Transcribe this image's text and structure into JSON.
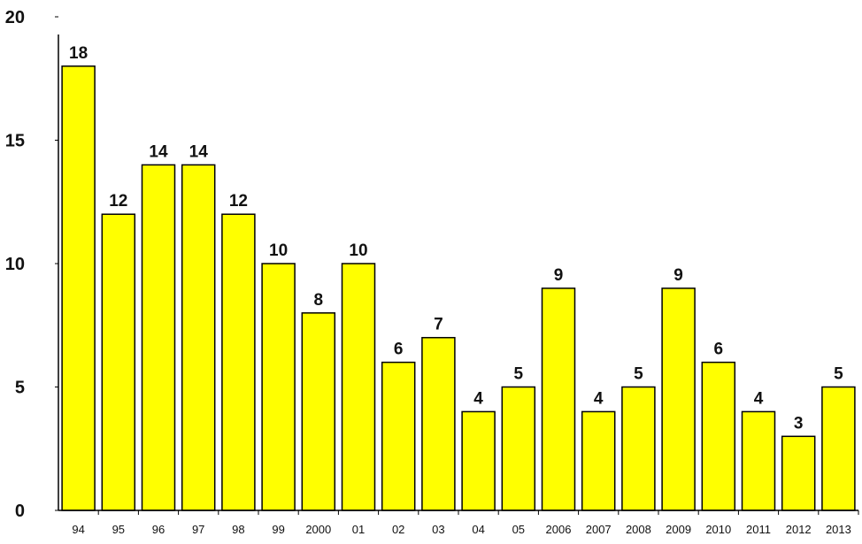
{
  "chart_data": {
    "type": "bar",
    "title": "",
    "xlabel": "",
    "ylabel": "",
    "categories": [
      "94",
      "95",
      "96",
      "97",
      "98",
      "99",
      "2000",
      "01",
      "02",
      "03",
      "04",
      "05",
      "2006",
      "2007",
      "2008",
      "2009",
      "2010",
      "2011",
      "2012",
      "2013"
    ],
    "values": [
      18,
      12,
      14,
      14,
      12,
      10,
      8,
      10,
      6,
      7,
      4,
      5,
      9,
      4,
      5,
      9,
      6,
      4,
      3,
      5
    ],
    "ylim": [
      0,
      20
    ],
    "yticks": [
      0,
      5,
      10,
      15,
      20
    ],
    "grid": false,
    "bar_color": "#ffff00",
    "bar_edge_color": "#000000",
    "data_labels": true
  }
}
